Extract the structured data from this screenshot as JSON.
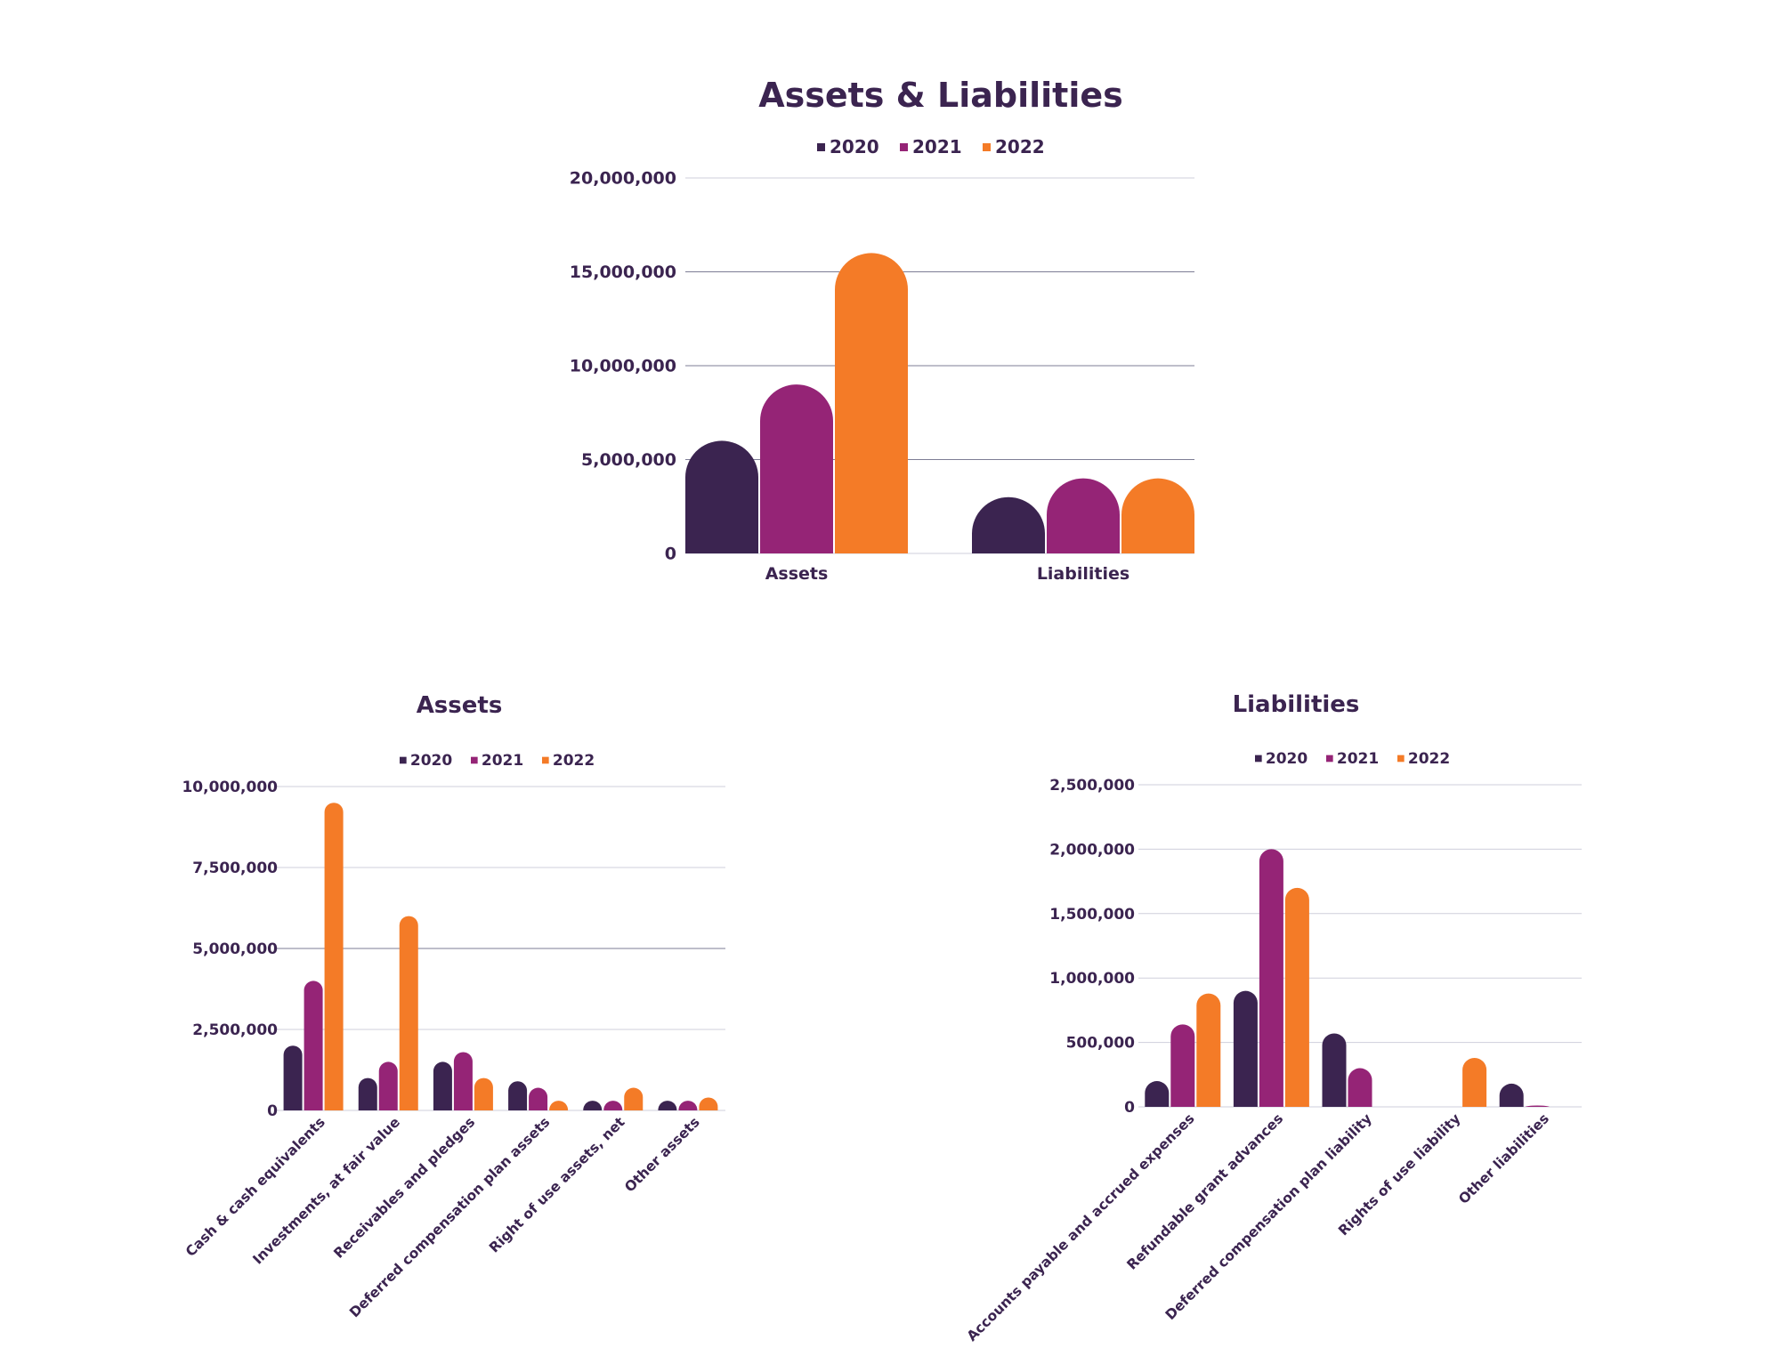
{
  "colors": {
    "series": [
      "#3b2450",
      "#952476",
      "#f47b27"
    ],
    "text": "#3b2450",
    "grid": "#cfcfdb"
  },
  "chart_data": [
    {
      "type": "bar",
      "title": "Assets & Liabilities",
      "categories": [
        "Assets",
        "Liabilities"
      ],
      "series": [
        {
          "name": "2020",
          "values": [
            6000000,
            3000000
          ]
        },
        {
          "name": "2021",
          "values": [
            9000000,
            4000000
          ]
        },
        {
          "name": "2022",
          "values": [
            16000000,
            4000000
          ]
        }
      ],
      "yticks": [
        "0",
        "5,000,000",
        "10,000,000",
        "15,000,000",
        "20,000,000"
      ],
      "ylim": [
        0,
        20000000
      ],
      "grid": true,
      "legend": "top"
    },
    {
      "type": "bar",
      "title": "Assets",
      "categories": [
        "Cash & cash equivalents",
        "Investments, at fair value",
        "Receivables and pledges",
        "Deferred compensation plan assets",
        "Right of use assets, net",
        "Other assets"
      ],
      "series": [
        {
          "name": "2020",
          "values": [
            2000000,
            1000000,
            1500000,
            900000,
            300000,
            300000
          ]
        },
        {
          "name": "2021",
          "values": [
            4000000,
            1500000,
            1800000,
            700000,
            300000,
            300000
          ]
        },
        {
          "name": "2022",
          "values": [
            9500000,
            6000000,
            1000000,
            300000,
            700000,
            400000
          ]
        }
      ],
      "yticks": [
        "0",
        "2,500,000",
        "5,000,000",
        "7,500,000",
        "10,000,000"
      ],
      "ylim": [
        0,
        10000000
      ],
      "grid": true,
      "legend": "top"
    },
    {
      "type": "bar",
      "title": "Liabilities",
      "categories": [
        "Accounts payable and accrued expenses",
        "Refundable grant advances",
        "Deferred compensation plan liability",
        "Rights of use liability",
        "Other liabilities"
      ],
      "series": [
        {
          "name": "2020",
          "values": [
            200000,
            900000,
            570000,
            0,
            180000
          ]
        },
        {
          "name": "2021",
          "values": [
            640000,
            2000000,
            300000,
            0,
            10000
          ]
        },
        {
          "name": "2022",
          "values": [
            880000,
            1700000,
            0,
            380000,
            0
          ]
        }
      ],
      "yticks": [
        "0",
        "500,000",
        "1,000,000",
        "1,500,000",
        "2,000,000",
        "2,500,000"
      ],
      "ylim": [
        0,
        2500000
      ],
      "grid": true,
      "legend": "top"
    }
  ]
}
